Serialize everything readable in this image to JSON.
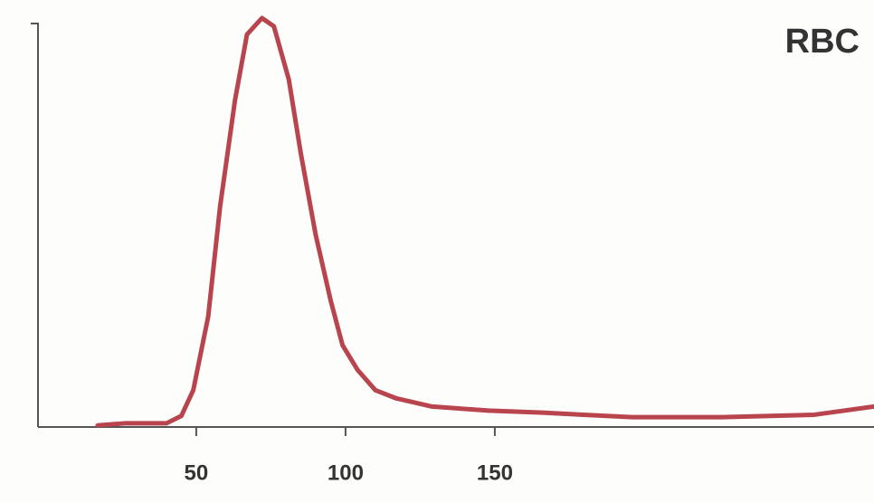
{
  "chart_data": {
    "type": "line",
    "title": "RBC",
    "x": [
      17,
      26,
      40,
      45,
      49,
      54,
      58,
      63,
      67,
      72,
      76,
      81,
      85,
      90,
      95,
      99,
      104,
      110,
      117,
      129,
      148,
      166,
      196,
      226,
      257,
      277
    ],
    "values": [
      0.4,
      0.9,
      0.9,
      2.7,
      9,
      27,
      54,
      80,
      96,
      100,
      98,
      85,
      67,
      47,
      31,
      20,
      14,
      9,
      7,
      5,
      4,
      3.5,
      2.4,
      2.4,
      3,
      5
    ],
    "color": "#b8444e",
    "xlim": [
      -3,
      277
    ],
    "ylim": [
      0,
      100
    ],
    "xticks": [
      50,
      100,
      150
    ]
  }
}
